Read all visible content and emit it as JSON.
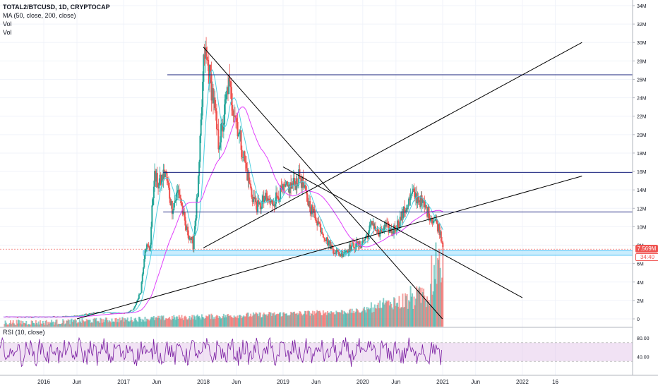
{
  "legend": {
    "title": "TOTAL2/BTCUSD, 1D, CRYPTOCAP",
    "ma": "MA (50, close, 200, close)",
    "vol1": "Vol",
    "vol2": "Vol"
  },
  "rsi_legend": "RSI (10, close)",
  "last_price_label": "7.569M",
  "countdown_label": "34:40",
  "colors": {
    "up": "#26a69a",
    "down": "#ef5350",
    "ma50": "#4dd0e1",
    "ma200": "#e040fb",
    "hline": "#1a237e",
    "trendline": "#000000",
    "rsi_line": "#7b1fa2",
    "rsi_band": "#e1bee7",
    "support_zone": "#b3e5fc",
    "last_price_tag": "#ef5350",
    "countdown_tag": "#ef5350"
  },
  "chart_data": [
    {
      "type": "candlestick",
      "title": "TOTAL2/BTCUSD, 1D, CRYPTOCAP",
      "y_tick_labels": [
        "0",
        "2M",
        "4M",
        "6M",
        "8M",
        "10M",
        "12M",
        "14M",
        "16M",
        "18M",
        "20M",
        "22M",
        "24M",
        "26M",
        "28M",
        "30M",
        "32M",
        "34M"
      ],
      "ylim": [
        0,
        34
      ],
      "y_unit": "M",
      "x_tick_labels": [
        "2016",
        "Jun",
        "2017",
        "Jun",
        "2018",
        "Jun",
        "2019",
        "Jun",
        "2020",
        "Jun",
        "2021",
        "Jun",
        "2022",
        "16"
      ],
      "x_tick_dates": [
        "2016-01-01",
        "2016-06-01",
        "2017-01-01",
        "2017-06-01",
        "2018-01-01",
        "2018-06-01",
        "2019-01-01",
        "2019-06-01",
        "2020-01-01",
        "2020-06-01",
        "2021-01-01",
        "2021-06-01",
        "2022-01-01",
        "2022-06-01"
      ],
      "close_series": [
        {
          "date": "2015-07-01",
          "value": 0.2
        },
        {
          "date": "2016-01-01",
          "value": 0.2
        },
        {
          "date": "2016-06-01",
          "value": 0.3
        },
        {
          "date": "2016-09-01",
          "value": 0.7
        },
        {
          "date": "2017-01-01",
          "value": 0.6
        },
        {
          "date": "2017-02-15",
          "value": 1.0
        },
        {
          "date": "2017-03-20",
          "value": 3.0
        },
        {
          "date": "2017-04-10",
          "value": 8.0
        },
        {
          "date": "2017-05-01",
          "value": 7.5
        },
        {
          "date": "2017-05-20",
          "value": 15.5
        },
        {
          "date": "2017-06-10",
          "value": 14.5
        },
        {
          "date": "2017-07-10",
          "value": 16.0
        },
        {
          "date": "2017-08-10",
          "value": 12.0
        },
        {
          "date": "2017-09-10",
          "value": 14.0
        },
        {
          "date": "2017-10-10",
          "value": 10.0
        },
        {
          "date": "2017-11-15",
          "value": 8.0
        },
        {
          "date": "2017-12-10",
          "value": 15.0
        },
        {
          "date": "2018-01-05",
          "value": 29.0
        },
        {
          "date": "2018-01-25",
          "value": 27.0
        },
        {
          "date": "2018-02-15",
          "value": 24.0
        },
        {
          "date": "2018-03-10",
          "value": 19.0
        },
        {
          "date": "2018-04-01",
          "value": 21.0
        },
        {
          "date": "2018-04-25",
          "value": 25.5
        },
        {
          "date": "2018-05-20",
          "value": 23.0
        },
        {
          "date": "2018-06-15",
          "value": 20.0
        },
        {
          "date": "2018-07-10",
          "value": 17.0
        },
        {
          "date": "2018-08-10",
          "value": 13.5
        },
        {
          "date": "2018-09-10",
          "value": 12.0
        },
        {
          "date": "2018-10-10",
          "value": 13.0
        },
        {
          "date": "2018-11-10",
          "value": 12.5
        },
        {
          "date": "2018-12-10",
          "value": 13.5
        },
        {
          "date": "2019-01-10",
          "value": 14.0
        },
        {
          "date": "2019-02-15",
          "value": 14.5
        },
        {
          "date": "2019-03-20",
          "value": 15.5
        },
        {
          "date": "2019-04-20",
          "value": 13.0
        },
        {
          "date": "2019-05-20",
          "value": 11.5
        },
        {
          "date": "2019-06-20",
          "value": 10.0
        },
        {
          "date": "2019-07-20",
          "value": 8.5
        },
        {
          "date": "2019-08-20",
          "value": 7.5
        },
        {
          "date": "2019-09-20",
          "value": 7.0
        },
        {
          "date": "2019-10-20",
          "value": 7.5
        },
        {
          "date": "2019-11-20",
          "value": 8.0
        },
        {
          "date": "2019-12-20",
          "value": 8.0
        },
        {
          "date": "2020-01-20",
          "value": 9.0
        },
        {
          "date": "2020-02-15",
          "value": 10.5
        },
        {
          "date": "2020-03-15",
          "value": 9.0
        },
        {
          "date": "2020-04-15",
          "value": 10.0
        },
        {
          "date": "2020-05-15",
          "value": 9.5
        },
        {
          "date": "2020-06-15",
          "value": 10.5
        },
        {
          "date": "2020-07-15",
          "value": 12.0
        },
        {
          "date": "2020-08-15",
          "value": 13.5
        },
        {
          "date": "2020-09-15",
          "value": 13.0
        },
        {
          "date": "2020-10-15",
          "value": 12.0
        },
        {
          "date": "2020-11-10",
          "value": 11.0
        },
        {
          "date": "2020-12-01",
          "value": 10.5
        },
        {
          "date": "2020-12-20",
          "value": 9.5
        },
        {
          "date": "2021-01-05",
          "value": 7.6
        }
      ],
      "horizontal_levels": [
        26.5,
        15.9,
        11.6
      ],
      "support_zone": [
        6.9,
        7.4
      ],
      "last_price": 7.569,
      "trendlines": [
        {
          "from": {
            "date": "2018-01-01",
            "value": 29.5
          },
          "to": {
            "date": "2020-12-31",
            "value": 0
          }
        },
        {
          "from": {
            "date": "2019-01-01",
            "value": 16.5
          },
          "to": {
            "date": "2022-01-01",
            "value": 2.3
          }
        },
        {
          "from": {
            "date": "2018-01-01",
            "value": 7.7
          },
          "to": {
            "date": "2022-10-01",
            "value": 30.0
          }
        },
        {
          "from": {
            "date": "2016-06-01",
            "value": 0
          },
          "to": {
            "date": "2022-10-01",
            "value": 15.5
          }
        }
      ]
    },
    {
      "type": "line",
      "title": "RSI (10, close)",
      "y_tick_labels": [
        "80.00",
        "40.00"
      ],
      "ylim": [
        0,
        100
      ],
      "bands": [
        70,
        30
      ]
    }
  ]
}
